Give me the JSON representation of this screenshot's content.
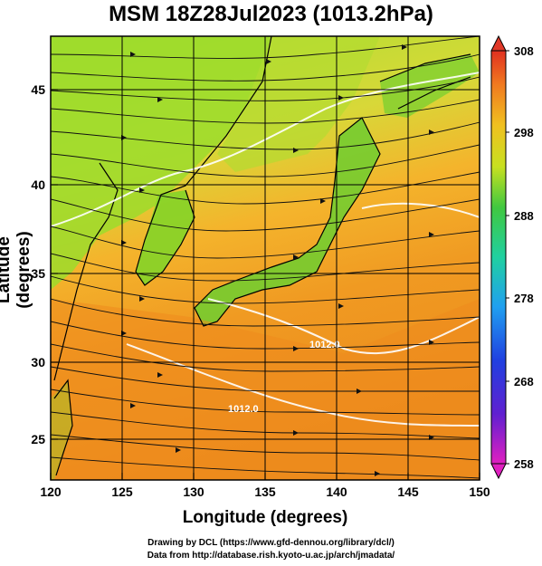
{
  "title": "MSM 18Z28Jul2023 (1013.2hPa)",
  "xlabel": "Longitude (degrees)",
  "ylabel": "Latitude  (degrees)",
  "x_ticks": [
    "120",
    "125",
    "130",
    "135",
    "140",
    "145",
    "150"
  ],
  "y_ticks": [
    "25",
    "30",
    "35",
    "40",
    "45"
  ],
  "colorbar_ticks": [
    "308",
    "298",
    "288",
    "278",
    "268",
    "258"
  ],
  "isobar_labels": [
    "1012.0",
    "1012.0"
  ],
  "credit_line1": "Drawing by DCL (https://www.gfd-dennou.org/library/dcl/)",
  "credit_line2": "Data from http://database.rish.kyoto-u.ac.jp/arch/jmadata/",
  "colors": {
    "warm": "#f08c1e",
    "mid": "#f5b42d",
    "land_green": "#8cdc28",
    "ocean_deep": "#e8781a"
  }
}
